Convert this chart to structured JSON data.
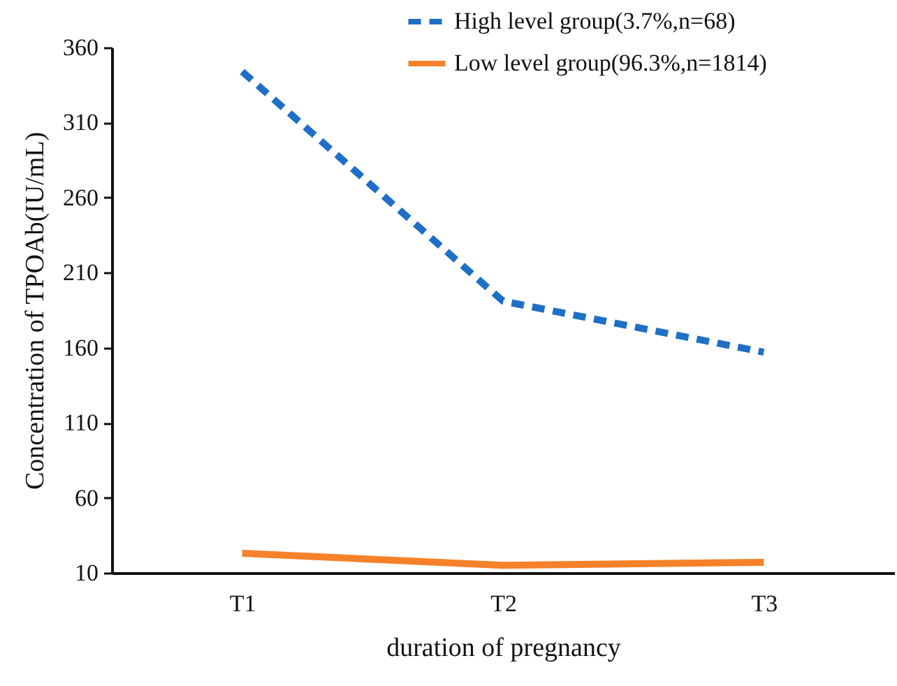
{
  "chart_data": {
    "type": "line",
    "xlabel": "duration of pregnancy",
    "ylabel": "Concentration of TPOAb(IU/mL)",
    "categories": [
      "T1",
      "T2",
      "T3"
    ],
    "series": [
      {
        "name": "High level group(3.7%,n=68)",
        "color": "#1f6fc6",
        "line_style": "dashed",
        "values": [
          344,
          191,
          157
        ]
      },
      {
        "name": "Low level group(96.3%,n=1814)",
        "color": "#f5822a",
        "line_style": "solid",
        "values": [
          23,
          15,
          17
        ]
      }
    ],
    "ylim": [
      10,
      360
    ],
    "yticks": [
      10,
      60,
      110,
      160,
      210,
      260,
      310,
      360
    ],
    "grid": false,
    "legend": "top right",
    "marker": "none"
  }
}
